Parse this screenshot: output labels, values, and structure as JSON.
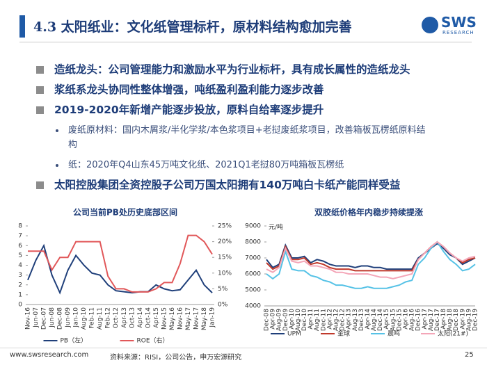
{
  "header": {
    "title": "4.3 太阳纸业：文化纸管理标杆，原材料结构愈加完善",
    "logo": {
      "name": "SWS",
      "sub": "RESEARCH"
    }
  },
  "bullets": [
    {
      "text": "造纸龙头：公司管理能力和激励水平为行业标杆，具有成长属性的造纸龙头"
    },
    {
      "text": "浆纸系龙头协同性整体增强，吨纸盈利盈利能力逐步改善"
    },
    {
      "text": "2019-2020年新增产能逐步投放，原料自给率逐步提升",
      "sub": [
        "废纸原材料：国内木屑浆/半化学浆/本色浆项目+老挝废纸浆项目，改善箱板瓦楞纸原料结构",
        "纸：2020年Q4山东45万吨文化纸、2021Q1老挝80万吨箱板瓦楞纸"
      ]
    },
    {
      "text": "太阳控股集团全资控股子公司万国太阳拥有140万吨白卡纸产能同样受益"
    }
  ],
  "chart_data": [
    {
      "type": "line",
      "title": "公司当前PB处历史底部区间",
      "categories": [
        "Nov-16",
        "Jun-07",
        "Dec-07",
        "Jun-08",
        "Dec-08",
        "Jun-09",
        "Jan-10",
        "Aug-10",
        "Feb-11",
        "Aug-11",
        "Feb-12",
        "Oct-12",
        "Apr-13",
        "Oct-13",
        "Apr-14",
        "Oct-14",
        "Apr-15",
        "Nov-15",
        "May-16",
        "Nov-16",
        "May-17",
        "Nov-17",
        "May-18",
        "Jan-19"
      ],
      "series": [
        {
          "name": "PB（左）",
          "color": "#1f3f7a",
          "values": [
            2.5,
            4.5,
            6.0,
            3.0,
            1.2,
            3.5,
            5.0,
            4.0,
            3.2,
            3.0,
            2.0,
            1.4,
            1.3,
            1.2,
            1.3,
            1.3,
            2.0,
            1.6,
            1.4,
            1.5,
            2.5,
            3.5,
            2.0,
            1.2
          ]
        },
        {
          "name": "ROE（右）",
          "color": "#e15759",
          "axis": "y2",
          "values": [
            17,
            17,
            17,
            11,
            15,
            15,
            20,
            20,
            20,
            20,
            9,
            5,
            5,
            4,
            4,
            4,
            5,
            7,
            7,
            13,
            22,
            22,
            20,
            16
          ]
        }
      ],
      "ylim": [
        0,
        8
      ],
      "yticks": [
        0,
        1,
        2,
        3,
        4,
        5,
        6,
        7,
        8
      ],
      "y2lim": [
        0,
        25
      ],
      "y2ticks": [
        {
          "value": 0,
          "label": "0%"
        },
        {
          "value": 5,
          "label": "5%"
        },
        {
          "value": 10,
          "label": "10%"
        },
        {
          "value": 15,
          "label": "15%"
        },
        {
          "value": 20,
          "label": "20%"
        },
        {
          "value": 25,
          "label": "25%"
        }
      ],
      "grid": false
    },
    {
      "type": "line",
      "title": "双胶纸价格年内稳步持续提涨",
      "annotation": "元/吨",
      "categories": [
        "Dec-08",
        "Apr-09",
        "Aug-09",
        "Dec-09",
        "Apr-10",
        "Aug-10",
        "Dec-10",
        "Apr-11",
        "Aug-11",
        "Dec-11",
        "Apr-12",
        "Aug-12",
        "Dec-12",
        "Apr-13",
        "Aug-13",
        "Dec-13",
        "Apr-14",
        "Aug-14",
        "Dec-14",
        "Apr-15",
        "Aug-15",
        "Dec-15",
        "Apr-16",
        "Aug-16",
        "Dec-16",
        "Apr-17",
        "Aug-17",
        "Dec-17",
        "Apr-18",
        "Aug-18",
        "Dec-18",
        "Apr-19",
        "Aug-19",
        "Dec-19"
      ],
      "series": [
        {
          "name": "UPM",
          "color": "#1f3f7a",
          "values": [
            6900,
            6400,
            6600,
            7800,
            7000,
            7000,
            7100,
            6700,
            6900,
            6800,
            6600,
            6500,
            6500,
            6500,
            6400,
            6500,
            6500,
            6400,
            6400,
            6300,
            6300,
            6300,
            6300,
            6300,
            7000,
            7300,
            7600,
            7900,
            7600,
            7200,
            7000,
            6600,
            6800,
            7000
          ]
        },
        {
          "name": "金球",
          "color": "#c0392b",
          "values": [
            6700,
            6300,
            6500,
            7700,
            6900,
            6900,
            7000,
            6600,
            6700,
            6600,
            6400,
            6300,
            6300,
            6300,
            6200,
            6200,
            6200,
            6200,
            6200,
            6200,
            6200,
            6200,
            6200,
            6200,
            6900,
            7300,
            7700,
            8000,
            7700,
            7300,
            7000,
            6700,
            6900,
            7000
          ]
        },
        {
          "name": "晨鸣",
          "color": "#56c2e6",
          "values": [
            6000,
            5700,
            6000,
            7400,
            6300,
            6200,
            6200,
            5900,
            5800,
            5600,
            5500,
            5300,
            5300,
            5200,
            5100,
            5100,
            5200,
            5100,
            5100,
            5100,
            5200,
            5300,
            5500,
            5600,
            6600,
            7000,
            7600,
            8000,
            7400,
            6900,
            6600,
            6200,
            6300,
            6600
          ]
        },
        {
          "name": "太阳(21#)",
          "color": "#f4a6b8",
          "values": [
            6300,
            6100,
            6400,
            7600,
            6800,
            6700,
            6800,
            6500,
            6500,
            6400,
            6300,
            6100,
            6100,
            6000,
            6000,
            6000,
            6000,
            5900,
            5800,
            5800,
            5700,
            5800,
            5900,
            6000,
            6900,
            7300,
            7700,
            8000,
            7700,
            7300,
            7000,
            6800,
            7000,
            7100
          ]
        }
      ],
      "ylim": [
        4000,
        9000
      ],
      "yticks": [
        4000,
        5000,
        6000,
        7000,
        8000,
        9000
      ],
      "grid": false
    }
  ],
  "footer": {
    "url": "www.swsresearch.com",
    "source": "资料来源：RISI，公司公告，申万宏源研究",
    "page": "25"
  }
}
